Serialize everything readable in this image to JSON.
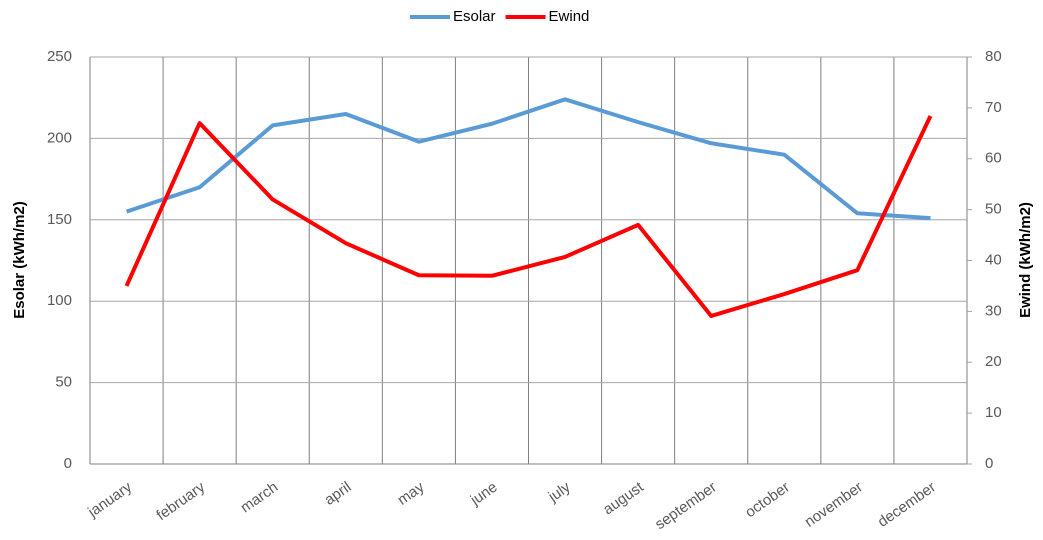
{
  "chart_data": {
    "type": "line",
    "categories": [
      "january",
      "february",
      "march",
      "april",
      "may",
      "june",
      "july",
      "august",
      "september",
      "october",
      "november",
      "december"
    ],
    "series": [
      {
        "name": "Esolar",
        "color": "#5b9bd5",
        "values": [
          155,
          170,
          208,
          215,
          198,
          209,
          224,
          210,
          197,
          190,
          154,
          151
        ]
      },
      {
        "name": "Ewind",
        "color": "#ff0000",
        "axis": "y2",
        "values": [
          35,
          67,
          52,
          43.4,
          37.1,
          37,
          40.7,
          47,
          29.1,
          33.4,
          38.1,
          68.4
        ]
      }
    ],
    "y_label": "Esolar (kWh/m2)",
    "y2_label": "Ewind  (kWh/m2)",
    "ylim": [
      0,
      250
    ],
    "yticks": [
      0,
      50,
      100,
      150,
      200,
      250
    ],
    "y2lim": [
      0,
      80
    ],
    "y2ticks": [
      0,
      10,
      20,
      30,
      40,
      50,
      60,
      70,
      80
    ],
    "grid": true,
    "legend": "top"
  }
}
